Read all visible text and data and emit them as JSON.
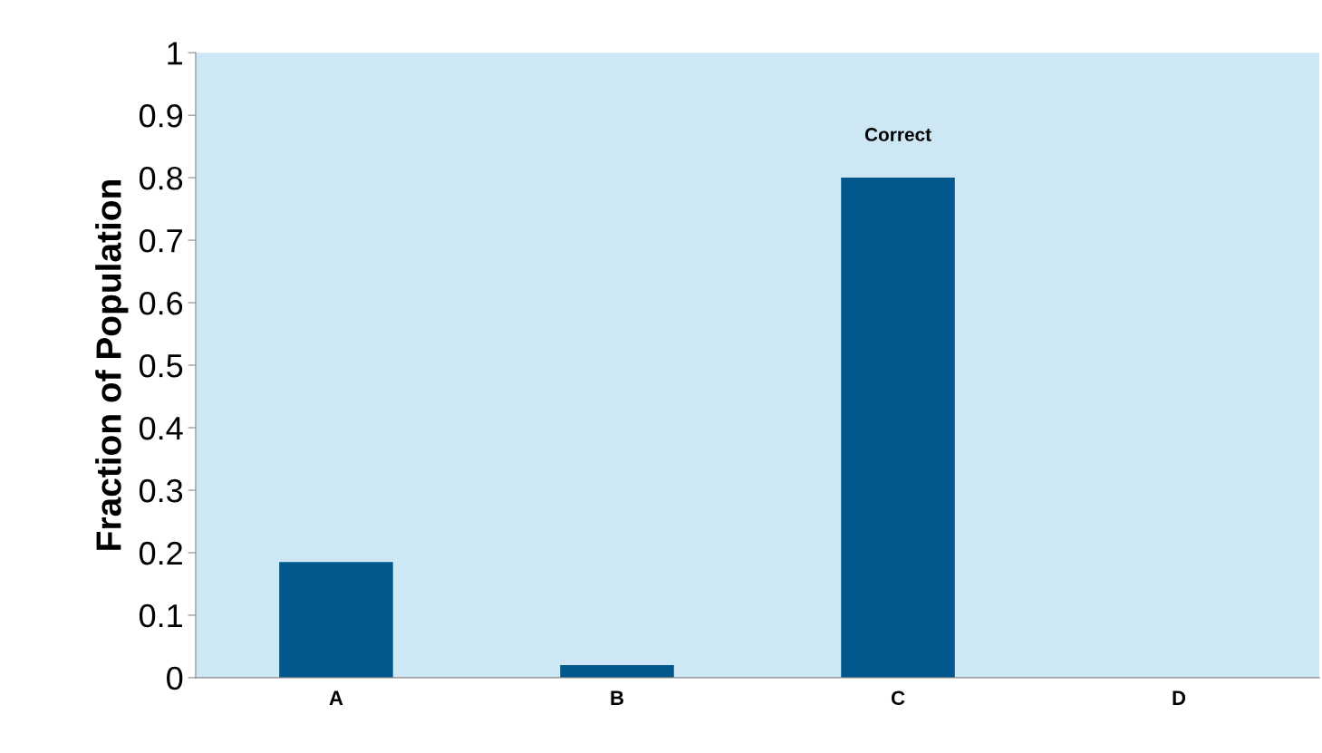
{
  "chart_data": {
    "type": "bar",
    "ylabel": "Fraction of Population",
    "categories": [
      "A",
      "B",
      "C",
      "D"
    ],
    "values": [
      0.185,
      0.02,
      0.8,
      0
    ],
    "color": "#02588c",
    "ylim": [
      0,
      1
    ],
    "yticks": [
      0,
      0.1,
      0.2,
      0.3,
      0.4,
      0.5,
      0.6,
      0.7,
      0.8,
      0.9,
      1
    ],
    "grid": false,
    "legend": false,
    "annotations": [
      {
        "text": "Correct",
        "x": "C",
        "y": 0.8
      }
    ]
  }
}
